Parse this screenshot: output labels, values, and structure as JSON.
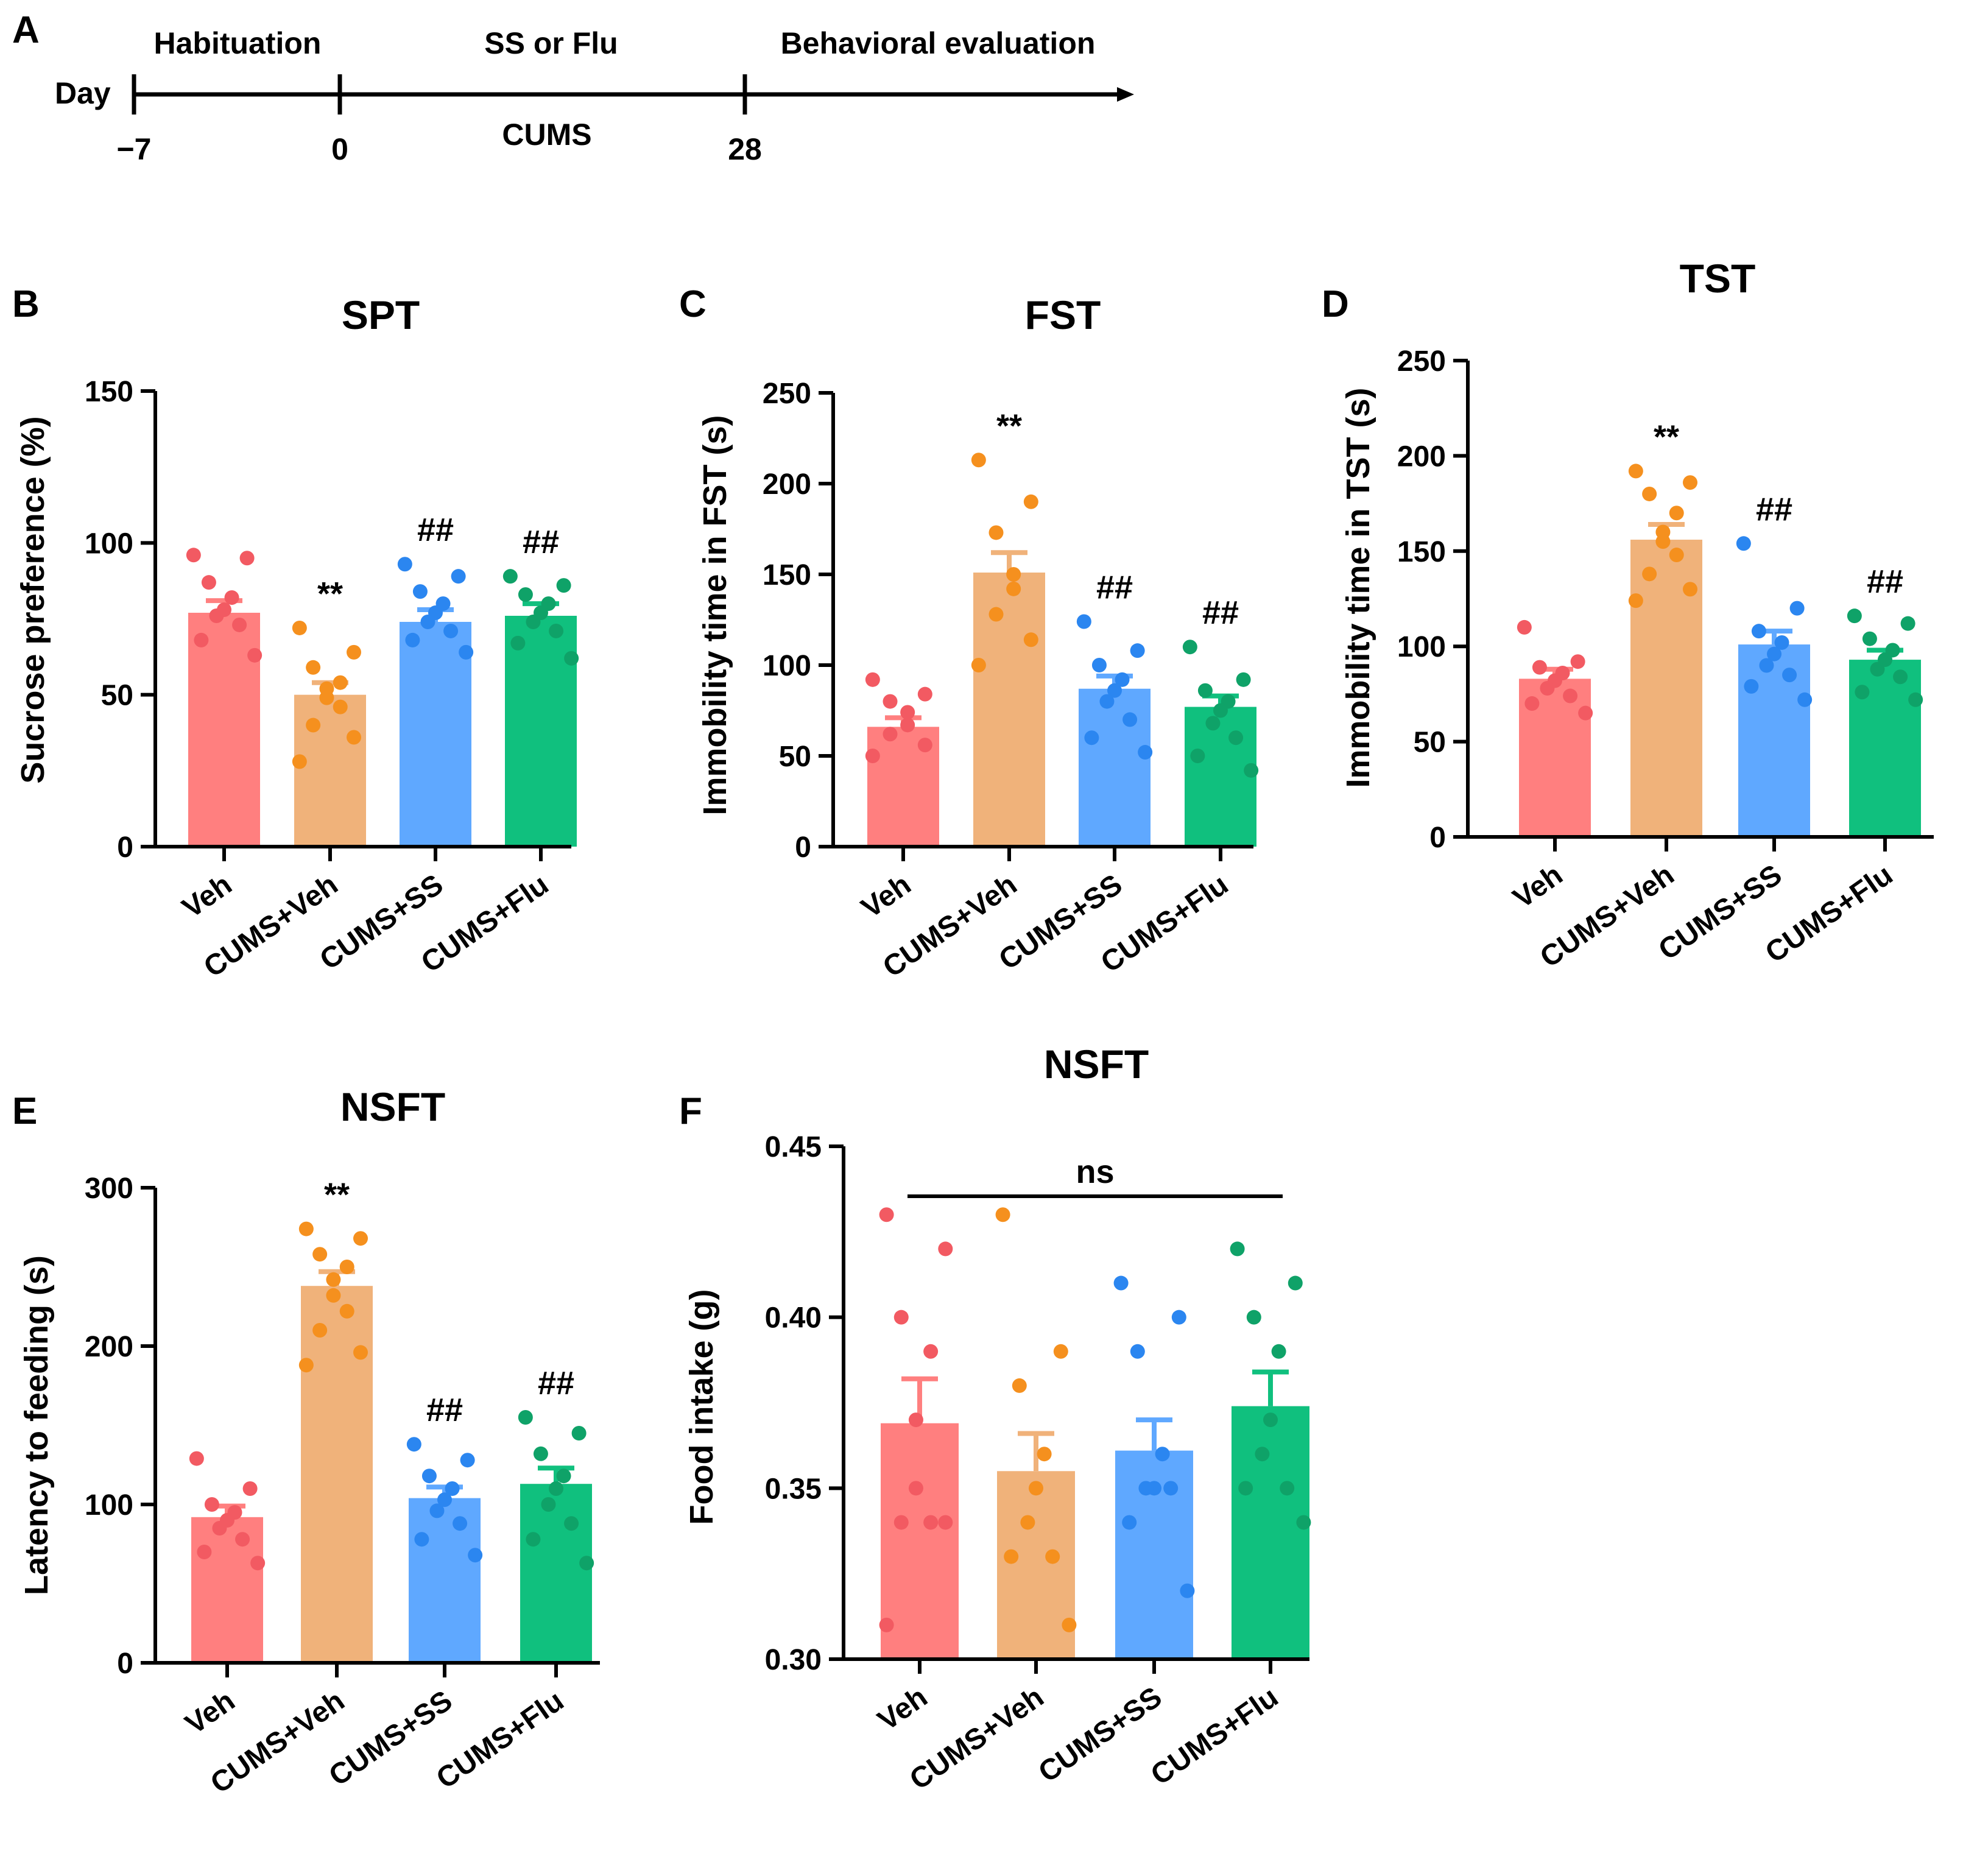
{
  "timeline": {
    "panel": "A",
    "day_label": "Day",
    "ticks": [
      "−7",
      "0",
      "28"
    ],
    "phase_labels": [
      "Habituation",
      "SS or Flu",
      "Behavioral evaluation"
    ],
    "sub_label": "CUMS"
  },
  "colors": {
    "bars": [
      "#FF7F7F",
      "#F0B27A",
      "#5FA8FF",
      "#10C07E"
    ],
    "dots": [
      "#F25A62",
      "#F5901E",
      "#2B86F0",
      "#0FA268"
    ]
  },
  "chart_data": [
    {
      "panel": "B",
      "type": "bar",
      "title": "SPT",
      "ylabel": "Sucrose preference (%)",
      "xlabel": "",
      "categories": [
        "Veh",
        "CUMS+Veh",
        "CUMS+SS",
        "CUMS+Flu"
      ],
      "values": [
        77,
        50,
        74,
        76
      ],
      "sem": [
        4,
        4,
        4,
        4
      ],
      "points": [
        [
          96,
          95,
          87,
          82,
          78,
          76,
          73,
          68,
          63
        ],
        [
          72,
          64,
          59,
          54,
          52,
          49,
          46,
          40,
          36,
          28
        ],
        [
          93,
          89,
          84,
          80,
          77,
          74,
          71,
          68,
          64
        ],
        [
          89,
          86,
          83,
          80,
          77,
          74,
          71,
          67,
          62
        ]
      ],
      "annotations": [
        "",
        "**",
        "##",
        "##"
      ],
      "ylim": [
        0,
        150
      ],
      "yticks": [
        0,
        50,
        100,
        150
      ]
    },
    {
      "panel": "C",
      "type": "bar",
      "title": "FST",
      "ylabel": "Immobility time in FST (s)",
      "xlabel": "",
      "categories": [
        "Veh",
        "CUMS+Veh",
        "CUMS+SS",
        "CUMS+Flu"
      ],
      "values": [
        66,
        151,
        87,
        77
      ],
      "sem": [
        5,
        11,
        7,
        6
      ],
      "points": [
        [
          92,
          84,
          80,
          74,
          67,
          62,
          56,
          50
        ],
        [
          213,
          190,
          173,
          150,
          142,
          128,
          114,
          100
        ],
        [
          124,
          108,
          100,
          92,
          86,
          80,
          70,
          60,
          52
        ],
        [
          110,
          92,
          86,
          80,
          75,
          68,
          60,
          50,
          42
        ]
      ],
      "annotations": [
        "",
        "**",
        "##",
        "##"
      ],
      "ylim": [
        0,
        250
      ],
      "yticks": [
        0,
        50,
        100,
        150,
        200,
        250
      ]
    },
    {
      "panel": "D",
      "type": "bar",
      "title": "TST",
      "ylabel": "Immobility time in TST (s)",
      "xlabel": "",
      "categories": [
        "Veh",
        "CUMS+Veh",
        "CUMS+SS",
        "CUMS+Flu"
      ],
      "values": [
        83,
        156,
        101,
        93
      ],
      "sem": [
        5,
        8,
        7,
        5
      ],
      "points": [
        [
          110,
          92,
          89,
          86,
          82,
          78,
          74,
          70,
          65
        ],
        [
          192,
          186,
          180,
          170,
          160,
          155,
          148,
          138,
          130,
          124
        ],
        [
          154,
          120,
          108,
          102,
          96,
          90,
          85,
          79,
          72
        ],
        [
          116,
          112,
          104,
          98,
          93,
          88,
          84,
          76,
          72
        ]
      ],
      "annotations": [
        "",
        "**",
        "##",
        "##"
      ],
      "ylim": [
        0,
        250
      ],
      "yticks": [
        0,
        50,
        100,
        150,
        200,
        250
      ]
    },
    {
      "panel": "E",
      "type": "bar",
      "title": "NSFT",
      "ylabel": "Latency to feeding (s)",
      "xlabel": "",
      "categories": [
        "Veh",
        "CUMS+Veh",
        "CUMS+SS",
        "CUMS+Flu"
      ],
      "values": [
        92,
        238,
        104,
        113
      ],
      "sem": [
        7,
        9,
        7,
        10
      ],
      "points": [
        [
          129,
          110,
          100,
          95,
          90,
          85,
          78,
          70,
          63
        ],
        [
          274,
          268,
          258,
          250,
          242,
          232,
          222,
          210,
          196,
          188
        ],
        [
          138,
          128,
          118,
          110,
          103,
          96,
          88,
          78,
          68
        ],
        [
          155,
          145,
          132,
          118,
          110,
          100,
          88,
          78,
          63
        ]
      ],
      "annotations": [
        "",
        "**",
        "##",
        "##"
      ],
      "ylim": [
        0,
        300
      ],
      "yticks": [
        0,
        100,
        200,
        300
      ]
    },
    {
      "panel": "F",
      "type": "bar",
      "title": "NSFT",
      "ylabel": "Food intake (g)",
      "xlabel": "",
      "categories": [
        "Veh",
        "CUMS+Veh",
        "CUMS+SS",
        "CUMS+Flu"
      ],
      "values": [
        0.369,
        0.355,
        0.361,
        0.374
      ],
      "sem": [
        0.013,
        0.011,
        0.009,
        0.01
      ],
      "points": [
        [
          0.43,
          0.42,
          0.4,
          0.39,
          0.37,
          0.35,
          0.34,
          0.34,
          0.34,
          0.31
        ],
        [
          0.43,
          0.39,
          0.38,
          0.36,
          0.35,
          0.34,
          0.33,
          0.33,
          0.31
        ],
        [
          0.41,
          0.4,
          0.39,
          0.36,
          0.35,
          0.35,
          0.35,
          0.34,
          0.32
        ],
        [
          0.42,
          0.41,
          0.4,
          0.39,
          0.37,
          0.36,
          0.35,
          0.35,
          0.34
        ]
      ],
      "annotations": [
        "",
        "",
        "",
        ""
      ],
      "bracket_label": "ns",
      "ylim": [
        0.3,
        0.45
      ],
      "yticks": [
        "0.30",
        "0.35",
        "0.40",
        "0.45"
      ]
    }
  ]
}
